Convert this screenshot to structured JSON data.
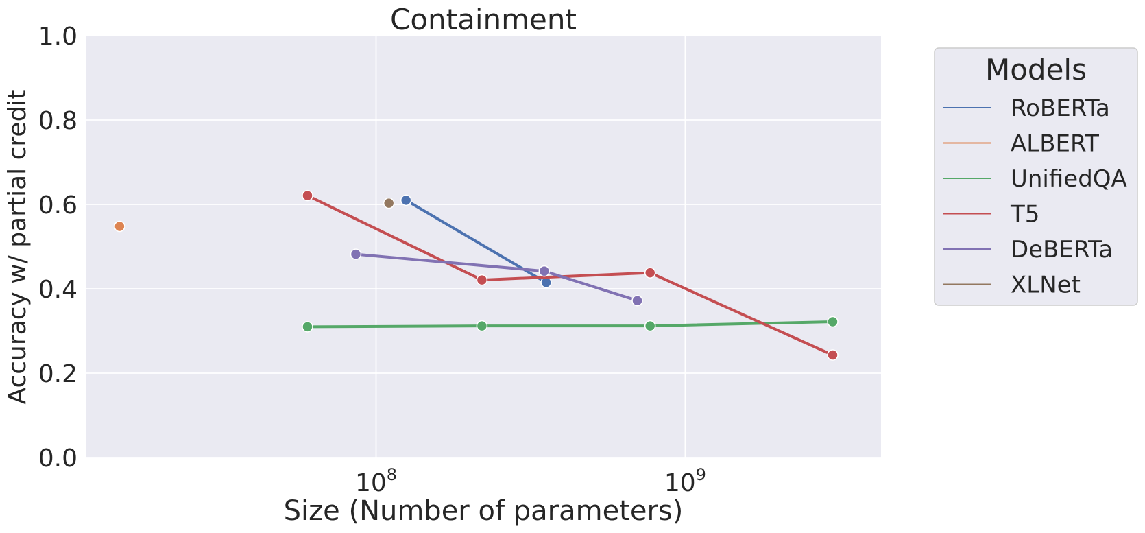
{
  "chart_data": {
    "type": "line",
    "title": "Containment",
    "xlabel": "Size (Number of parameters)",
    "ylabel": "Accuracy w/ partial credit",
    "xscale": "log",
    "xlim": [
      11500000,
      4300000000
    ],
    "ylim": [
      0,
      1
    ],
    "x_ticks": [
      {
        "value": 100000000,
        "base": "10",
        "exp": "8"
      },
      {
        "value": 1000000000,
        "base": "10",
        "exp": "9"
      }
    ],
    "y_ticks": [
      "0.0",
      "0.2",
      "0.4",
      "0.6",
      "0.8",
      "1.0"
    ],
    "grid": true,
    "legend": {
      "title": "Models",
      "placement": "outside-right"
    },
    "series": [
      {
        "name": "RoBERTa",
        "color": "#4c72b0",
        "x": [
          125000000,
          355000000
        ],
        "y": [
          0.61,
          0.415
        ]
      },
      {
        "name": "ALBERT",
        "color": "#dd8452",
        "x": [
          14800000
        ],
        "y": [
          0.548
        ]
      },
      {
        "name": "UnifiedQA",
        "color": "#55a868",
        "x": [
          60000000,
          220000000,
          770000000,
          3000000000
        ],
        "y": [
          0.31,
          0.312,
          0.312,
          0.322
        ]
      },
      {
        "name": "T5",
        "color": "#c44e52",
        "x": [
          60000000,
          220000000,
          770000000,
          3000000000
        ],
        "y": [
          0.621,
          0.421,
          0.438,
          0.243
        ]
      },
      {
        "name": "DeBERTa",
        "color": "#8172b3",
        "x": [
          86000000,
          350000000,
          700000000
        ],
        "y": [
          0.482,
          0.442,
          0.372
        ]
      },
      {
        "name": "XLNet",
        "color": "#937860",
        "x": [
          110000000
        ],
        "y": [
          0.603
        ]
      }
    ]
  }
}
